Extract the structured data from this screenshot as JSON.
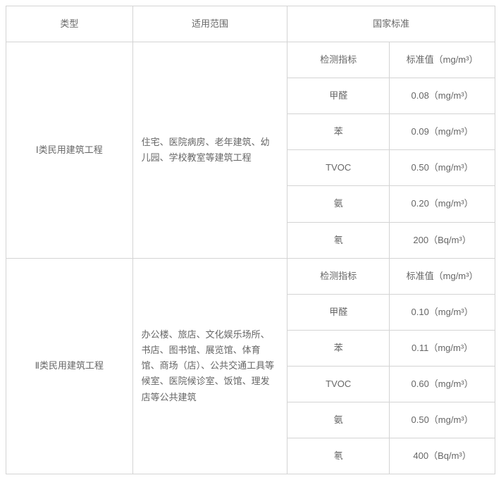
{
  "table": {
    "type": "table",
    "border_color": "#d4d4d4",
    "text_color": "#666666",
    "background_color": "#ffffff",
    "font_size": 13,
    "headers": {
      "type": "类型",
      "scope": "适用范围",
      "standard": "国家标准"
    },
    "categories": [
      {
        "type_label": "Ⅰ类民用建筑工程",
        "scope_text": "住宅、医院病房、老年建筑、幼儿园、学校教室等建筑工程",
        "sub_header": {
          "indicator": "检测指标",
          "value": "标准值（mg/m³）"
        },
        "rows": [
          {
            "indicator": "甲醛",
            "value": "0.08（mg/m³）"
          },
          {
            "indicator": "苯",
            "value": "0.09（mg/m³）"
          },
          {
            "indicator": "TVOC",
            "value": "0.50（mg/m³）"
          },
          {
            "indicator": "氨",
            "value": "0.20（mg/m³）"
          },
          {
            "indicator": "氡",
            "value": "200（Bq/m³）"
          }
        ]
      },
      {
        "type_label": "Ⅱ类民用建筑工程",
        "scope_text": "办公楼、旅店、文化娱乐场所、书店、图书馆、展览馆、体育馆、商场（店）、公共交通工具等候室、医院候诊室、饭馆、理发店等公共建筑",
        "sub_header": {
          "indicator": "检测指标",
          "value": "标准值（mg/m³）"
        },
        "rows": [
          {
            "indicator": "甲醛",
            "value": "0.10（mg/m³）"
          },
          {
            "indicator": "苯",
            "value": "0.11（mg/m³）"
          },
          {
            "indicator": "TVOC",
            "value": "0.60（mg/m³）"
          },
          {
            "indicator": "氨",
            "value": "0.50（mg/m³）"
          },
          {
            "indicator": "氡",
            "value": "400（Bq/m³）"
          }
        ]
      }
    ]
  }
}
